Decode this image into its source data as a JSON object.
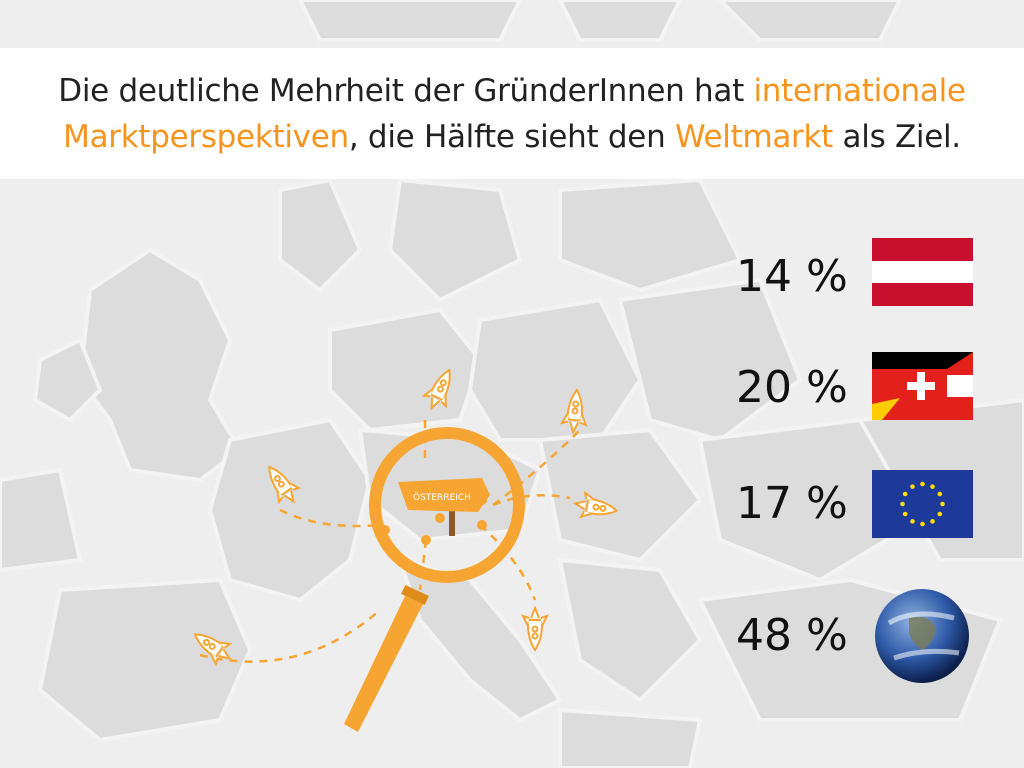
{
  "title": {
    "part1": "Die deutliche Mehrheit der GründerInnen hat ",
    "highlight1": "internationale",
    "part2": "Marktperspektiven",
    "part3": ", die Hälfte sieht den ",
    "highlight2": "Weltmarkt",
    "part4": " als Ziel."
  },
  "sign_label": "ÖSTERREICH",
  "stats": [
    {
      "value": "14 %",
      "icon": "austria-flag-icon"
    },
    {
      "value": "20 %",
      "icon": "dach-flags-icon"
    },
    {
      "value": "17 %",
      "icon": "eu-flag-icon"
    },
    {
      "value": "48 %",
      "icon": "globe-icon"
    }
  ],
  "colors": {
    "accent": "#f7941d",
    "magnifier": "#f6a532",
    "map": "#dcdcdc",
    "background": "#eeeeee"
  }
}
